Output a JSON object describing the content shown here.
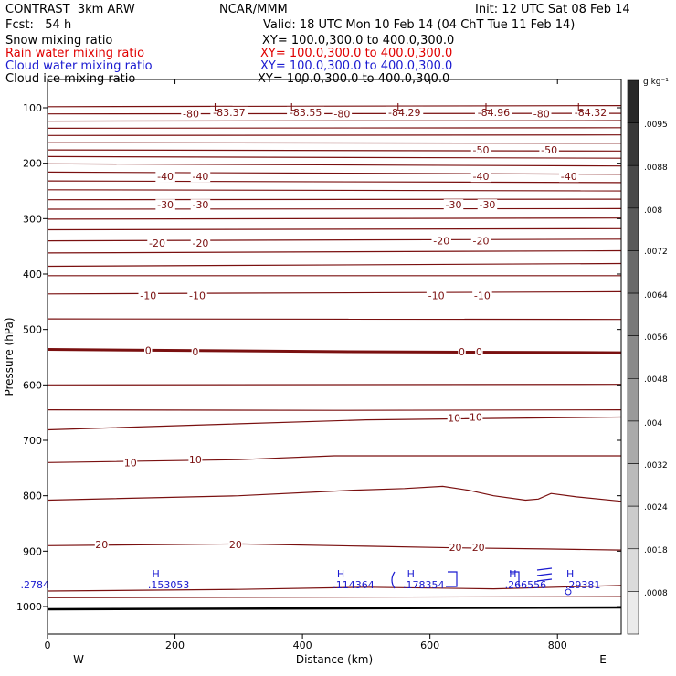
{
  "header": {
    "model": "CONTRAST  3km ARW",
    "center": "NCAR/MMM",
    "init": "Init: 12 UTC Sat 08 Feb 14",
    "fcst": "Fcst:   54 h",
    "valid": "Valid: 18 UTC Mon 10 Feb 14 (04 ChT Tue 11 Feb 14)"
  },
  "fields": [
    {
      "name": "Snow mixing ratio",
      "xy": "XY= 100.0,300.0 to 400.0,300.0",
      "color": "#000000"
    },
    {
      "name": "Rain water mixing ratio",
      "xy": "XY= 100.0,300.0 to 400.0,300.0",
      "color": "#e00000"
    },
    {
      "name": "Cloud water mixing ratio",
      "xy": "XY= 100.0,300.0 to 400.0,300.0",
      "color": "#1a1ad0"
    },
    {
      "name": "Cloud ice mixing ratio",
      "xy": "XY= 100.0,300.0 to 400.0,300.0",
      "color": "#000000"
    }
  ],
  "chart_data": {
    "type": "cross-section contour",
    "xlabel": "Distance (km)",
    "ylabel": "Pressure (hPa)",
    "xlim": [
      0,
      900
    ],
    "ylim": [
      1050,
      65
    ],
    "xticks": [
      "0",
      "200",
      "400",
      "600",
      "800"
    ],
    "xtick_values": [
      0,
      200,
      400,
      600,
      800
    ],
    "yticks": [
      "100",
      "200",
      "300",
      "400",
      "500",
      "600",
      "700",
      "800",
      "900",
      "1000"
    ],
    "ytick_values": [
      100,
      200,
      300,
      400,
      500,
      600,
      700,
      800,
      900,
      1000
    ],
    "endpoints": {
      "left": "W",
      "right": "E"
    },
    "temperature_contours": {
      "color": "#7a1010",
      "lines": [
        [
          [
            0,
            98
          ],
          [
            900,
            96
          ]
        ],
        [
          [
            0,
            111
          ],
          [
            900,
            110
          ]
        ],
        [
          [
            0,
            124
          ],
          [
            900,
            123
          ]
        ],
        [
          [
            0,
            137
          ],
          [
            900,
            136
          ]
        ],
        [
          [
            0,
            150
          ],
          [
            900,
            149
          ]
        ],
        [
          [
            0,
            163
          ],
          [
            900,
            164
          ]
        ],
        [
          [
            0,
            176
          ],
          [
            900,
            178
          ]
        ],
        [
          [
            0,
            188
          ],
          [
            900,
            191
          ]
        ],
        [
          [
            0,
            201
          ],
          [
            900,
            205
          ]
        ],
        [
          [
            0,
            216
          ],
          [
            900,
            220
          ]
        ],
        [
          [
            0,
            232
          ],
          [
            900,
            235
          ]
        ],
        [
          [
            0,
            248
          ],
          [
            900,
            250
          ]
        ],
        [
          [
            0,
            266
          ],
          [
            900,
            265
          ]
        ],
        [
          [
            0,
            283
          ],
          [
            900,
            282
          ]
        ],
        [
          [
            0,
            301
          ],
          [
            900,
            299
          ]
        ],
        [
          [
            0,
            320
          ],
          [
            900,
            318
          ]
        ],
        [
          [
            0,
            340
          ],
          [
            900,
            337
          ]
        ],
        [
          [
            0,
            362
          ],
          [
            900,
            358
          ]
        ],
        [
          [
            0,
            386
          ],
          [
            900,
            381
          ]
        ],
        [
          [
            0,
            403
          ],
          [
            900,
            403
          ]
        ],
        [
          [
            0,
            436
          ],
          [
            900,
            432
          ]
        ],
        [
          [
            0,
            481
          ],
          [
            900,
            482
          ]
        ],
        [
          [
            0,
            536
          ],
          [
            450,
            540
          ],
          [
            900,
            542
          ]
        ],
        [
          [
            0,
            600
          ],
          [
            900,
            599
          ]
        ],
        [
          [
            0,
            645
          ],
          [
            450,
            646
          ],
          [
            900,
            645
          ]
        ],
        [
          [
            0,
            681
          ],
          [
            250,
            672
          ],
          [
            500,
            663
          ],
          [
            900,
            658
          ]
        ],
        [
          [
            0,
            740
          ],
          [
            300,
            735
          ],
          [
            450,
            728
          ],
          [
            900,
            728
          ]
        ],
        [
          [
            0,
            808
          ],
          [
            300,
            800
          ],
          [
            480,
            790
          ],
          [
            560,
            787
          ],
          [
            620,
            783
          ],
          [
            660,
            790
          ],
          [
            700,
            800
          ],
          [
            750,
            808
          ],
          [
            770,
            806
          ],
          [
            790,
            796
          ],
          [
            830,
            802
          ],
          [
            900,
            810
          ]
        ],
        [
          [
            0,
            890
          ],
          [
            300,
            887
          ],
          [
            500,
            891
          ],
          [
            640,
            894
          ],
          [
            780,
            896
          ],
          [
            900,
            898
          ]
        ],
        [
          [
            0,
            972
          ],
          [
            300,
            969
          ],
          [
            500,
            965
          ],
          [
            700,
            968
          ],
          [
            900,
            962
          ]
        ],
        [
          [
            0,
            984
          ],
          [
            900,
            982
          ]
        ]
      ],
      "bold_zero": [
        [
          0,
          536
        ],
        [
          450,
          540
        ],
        [
          900,
          542
        ]
      ],
      "labels": [
        {
          "text": "-80",
          "x": 225,
          "p": 111
        },
        {
          "text": "-83.37",
          "x": 285,
          "p": 108
        },
        {
          "text": "-83.55",
          "x": 405,
          "p": 108
        },
        {
          "text": "-80",
          "x": 462,
          "p": 111
        },
        {
          "text": "-84.29",
          "x": 560,
          "p": 108
        },
        {
          "text": "-84.96",
          "x": 700,
          "p": 108
        },
        {
          "text": "-80",
          "x": 775,
          "p": 111
        },
        {
          "text": "-84.32",
          "x": 852,
          "p": 108
        },
        {
          "text": "-50",
          "x": 680,
          "p": 176
        },
        {
          "text": "-50",
          "x": 787,
          "p": 176
        },
        {
          "text": "-40",
          "x": 185,
          "p": 224
        },
        {
          "text": "-40",
          "x": 240,
          "p": 224
        },
        {
          "text": "-40",
          "x": 680,
          "p": 224
        },
        {
          "text": "-40",
          "x": 818,
          "p": 224
        },
        {
          "text": "-30",
          "x": 185,
          "p": 275
        },
        {
          "text": "-30",
          "x": 240,
          "p": 275
        },
        {
          "text": "-30",
          "x": 637,
          "p": 275
        },
        {
          "text": "-30",
          "x": 690,
          "p": 275
        },
        {
          "text": "-20",
          "x": 172,
          "p": 344
        },
        {
          "text": "-20",
          "x": 240,
          "p": 344
        },
        {
          "text": "-20",
          "x": 618,
          "p": 340
        },
        {
          "text": "-20",
          "x": 680,
          "p": 340
        },
        {
          "text": "-10",
          "x": 158,
          "p": 439
        },
        {
          "text": "-10",
          "x": 235,
          "p": 439
        },
        {
          "text": "-10",
          "x": 610,
          "p": 439
        },
        {
          "text": "-10",
          "x": 682,
          "p": 439
        },
        {
          "text": "0",
          "x": 158,
          "p": 538
        },
        {
          "text": "0",
          "x": 232,
          "p": 540
        },
        {
          "text": "0",
          "x": 650,
          "p": 540
        },
        {
          "text": "0",
          "x": 677,
          "p": 540
        },
        {
          "text": "10",
          "x": 130,
          "p": 740
        },
        {
          "text": "10",
          "x": 232,
          "p": 735
        },
        {
          "text": "10",
          "x": 638,
          "p": 660
        },
        {
          "text": "10",
          "x": 672,
          "p": 658
        },
        {
          "text": "20",
          "x": 85,
          "p": 888
        },
        {
          "text": "20",
          "x": 295,
          "p": 888
        },
        {
          "text": "20",
          "x": 640,
          "p": 893
        },
        {
          "text": "20",
          "x": 676,
          "p": 893
        }
      ],
      "lows": [
        {
          "text": "L",
          "x": 265,
          "p": 98
        },
        {
          "text": "L",
          "x": 385,
          "p": 98
        },
        {
          "text": "L",
          "x": 552,
          "p": 98
        },
        {
          "text": "L",
          "x": 690,
          "p": 98
        },
        {
          "text": "L",
          "x": 835,
          "p": 98
        }
      ]
    },
    "cloud_water": {
      "color": "#1a1ad0",
      "highs": [
        {
          "mark": "H",
          "value": ".153053",
          "x": 170
        },
        {
          "mark": "H",
          "value": ".114364",
          "x": 460
        },
        {
          "mark": "H",
          "value": ".178354",
          "x": 570
        },
        {
          "mark": "H",
          "value": ".266556",
          "x": 730
        },
        {
          "mark": "H",
          "value": ".29381",
          "x": 820
        }
      ],
      "edge_value": ".2784"
    },
    "colorbar": {
      "unit": "g kg⁻¹",
      "ticks": [
        ".0095",
        ".0088",
        ".008",
        ".0072",
        ".0064",
        ".0056",
        ".0048",
        ".004",
        ".0032",
        ".0024",
        ".0018",
        ".0008"
      ]
    }
  }
}
